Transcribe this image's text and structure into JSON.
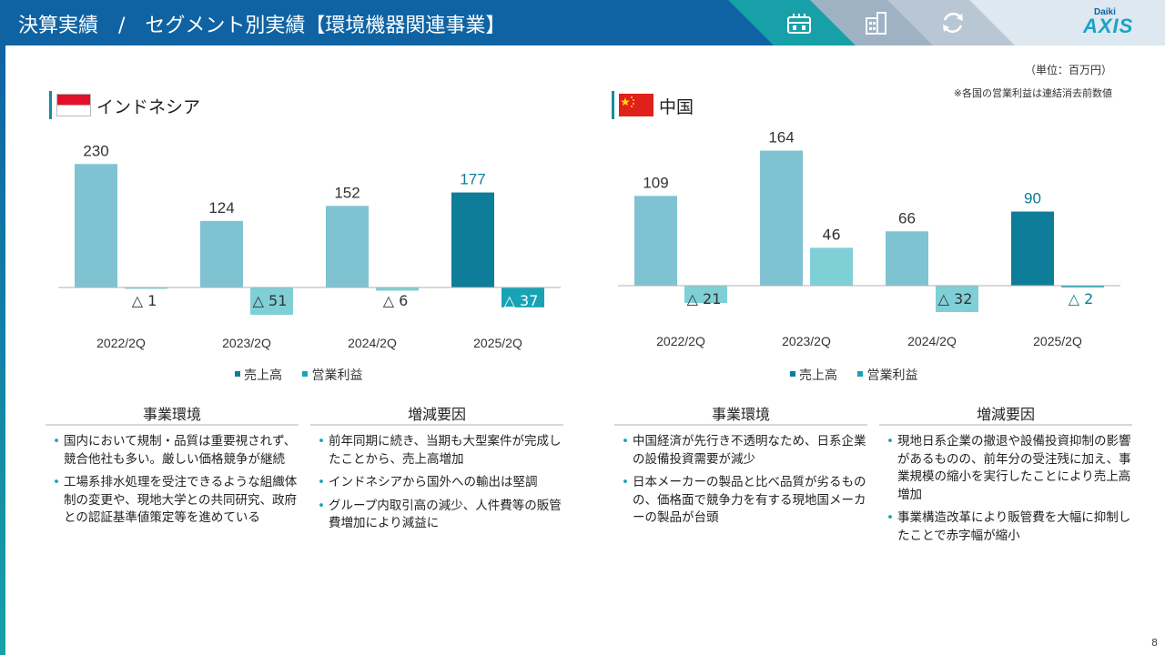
{
  "header": {
    "title": "決算実績　/　セグメント別実績【環境機器関連事業】",
    "nav_icons": [
      "factory-icon",
      "building-icon",
      "recycle-icon"
    ],
    "logo": {
      "small": "Daiki",
      "big": "AXIS"
    }
  },
  "unit_note": "（単位：百万円）",
  "consolidation_note": "※各国の営業利益は連結消去前数値",
  "colors": {
    "sales": "#7fc3d3",
    "sales_current": "#0e7d99",
    "profit": "#7fcfd6",
    "profit_current": "#16a3b5",
    "highlight_text": "#0f7d96"
  },
  "chart_data": [
    {
      "type": "bar",
      "region": "インドネシア",
      "categories": [
        "2022/2Q",
        "2023/2Q",
        "2024/2Q",
        "2025/2Q"
      ],
      "series": [
        {
          "name": "売上高",
          "values": [
            230,
            124,
            152,
            177
          ]
        },
        {
          "name": "営業利益",
          "values": [
            -1,
            -51,
            -6,
            -37
          ]
        }
      ],
      "value_labels": {
        "sales": [
          "230",
          "124",
          "152",
          "177"
        ],
        "profit": [
          "△ 1",
          "△ 51",
          "△ 6",
          "△ 37"
        ]
      },
      "highlight_index": 3,
      "ylim": [
        -60,
        240
      ],
      "legend": "bottom"
    },
    {
      "type": "bar",
      "region": "中国",
      "categories": [
        "2022/2Q",
        "2023/2Q",
        "2024/2Q",
        "2025/2Q"
      ],
      "series": [
        {
          "name": "売上高",
          "values": [
            109,
            164,
            66,
            90
          ]
        },
        {
          "name": "営業利益",
          "values": [
            -21,
            46,
            -32,
            -2
          ]
        }
      ],
      "value_labels": {
        "sales": [
          "109",
          "164",
          "66",
          "90"
        ],
        "profit": [
          "△ 21",
          "46",
          "△ 32",
          "△ 2"
        ]
      },
      "highlight_index": 3,
      "ylim": [
        -60,
        240
      ],
      "legend": "bottom"
    }
  ],
  "legend": {
    "sales": "売上高",
    "profit": "営業利益"
  },
  "indonesia": {
    "env_head": "事業環境",
    "env_items": [
      "国内において規制・品質は重要視されず、競合他社も多い。厳しい価格競争が継続",
      "工場系排水処理を受注できるような組織体制の変更や、現地大学との共同研究、政府との認証基準値策定等を進めている"
    ],
    "factor_head": "増減要因",
    "factor_items": [
      "前年同期に続き、当期も大型案件が完成したことから、売上高増加",
      "インドネシアから国外への輸出は堅調",
      "グループ内取引高の減少、人件費等の販管費増加により減益に"
    ]
  },
  "china": {
    "env_head": "事業環境",
    "env_items": [
      "中国経済が先行き不透明なため、日系企業の設備投資需要が減少",
      "日本メーカーの製品と比べ品質が劣るものの、価格面で競争力を有する現地国メーカーの製品が台頭"
    ],
    "factor_head": "増減要因",
    "factor_items": [
      "現地日系企業の撤退や設備投資抑制の影響があるものの、前年分の受注残に加え、事業規模の縮小を実行したことにより売上高増加",
      "事業構造改革により販管費を大幅に抑制したことで赤字幅が縮小"
    ]
  },
  "page_number": "8"
}
